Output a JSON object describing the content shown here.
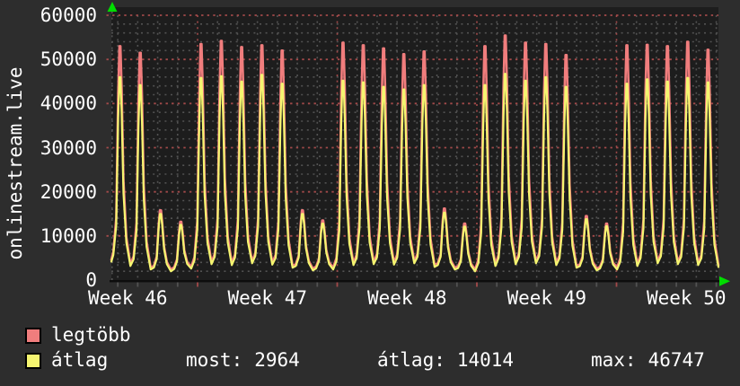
{
  "header": {
    "vertical_title": "onlinestream.live"
  },
  "colors": {
    "background": "#2d2d2d",
    "plot_background": "#1d1d1d",
    "minor_grid": "#525252",
    "major_grid_red": "#a34a4a",
    "axis": "#0d0d0d",
    "arrow_green": "#00dd00",
    "text": "#ffffff",
    "series_max": "#f07d7d",
    "series_avg": "#f5f570"
  },
  "legend": {
    "items": [
      {
        "label": "legtöbb",
        "color": "#f07d7d"
      },
      {
        "label": "átlag",
        "color": "#f5f570"
      }
    ]
  },
  "stats": {
    "most": {
      "label": "most:",
      "value": "2964"
    },
    "atlag": {
      "label": "átlag:",
      "value": "14014"
    },
    "max": {
      "label": "max:",
      "value": "46747"
    }
  },
  "chart_data": {
    "type": "line",
    "title": "onlinestream.live",
    "ylim": [
      0,
      60000
    ],
    "grid": {
      "minor_step_y": 2000,
      "major_step_y": 10000,
      "minor_x": "day",
      "major_x": "week"
    },
    "y_ticks": [
      {
        "value": 60000,
        "label": "60000"
      },
      {
        "value": 50000,
        "label": "50000"
      },
      {
        "value": 40000,
        "label": "40000"
      },
      {
        "value": 30000,
        "label": "30000"
      },
      {
        "value": 20000,
        "label": "20000"
      },
      {
        "value": 10000,
        "label": "10000"
      },
      {
        "value": 0,
        "label": "0"
      }
    ],
    "x_tick_labels": [
      "Week 46",
      "Week 47",
      "Week 48",
      "Week 49",
      "Week 50"
    ],
    "legend_position": "bottom-left",
    "series_names": {
      "max": "legtöbb",
      "avg": "átlag"
    },
    "days": [
      {
        "max": 53000,
        "avg": 46000
      },
      {
        "max": 51500,
        "avg": 44200
      },
      {
        "max": 15800,
        "avg": 15000
      },
      {
        "max": 13200,
        "avg": 12500
      },
      {
        "max": 53500,
        "avg": 45800
      },
      {
        "max": 54200,
        "avg": 46200
      },
      {
        "max": 52800,
        "avg": 45000
      },
      {
        "max": 53200,
        "avg": 46500
      },
      {
        "max": 52000,
        "avg": 44500
      },
      {
        "max": 15800,
        "avg": 15000
      },
      {
        "max": 13500,
        "avg": 12800
      },
      {
        "max": 53800,
        "avg": 45200
      },
      {
        "max": 53200,
        "avg": 44800
      },
      {
        "max": 52500,
        "avg": 43800
      },
      {
        "max": 51200,
        "avg": 43200
      },
      {
        "max": 51800,
        "avg": 44200
      },
      {
        "max": 16200,
        "avg": 15300
      },
      {
        "max": 12800,
        "avg": 12100
      },
      {
        "max": 53000,
        "avg": 44200
      },
      {
        "max": 55400,
        "avg": 46747
      },
      {
        "max": 53800,
        "avg": 45200
      },
      {
        "max": 53500,
        "avg": 46000
      },
      {
        "max": 51000,
        "avg": 43800
      },
      {
        "max": 14500,
        "avg": 13800
      },
      {
        "max": 12800,
        "avg": 12200
      },
      {
        "max": 53200,
        "avg": 44500
      },
      {
        "max": 53300,
        "avg": 45500
      },
      {
        "max": 53000,
        "avg": 45000
      },
      {
        "max": 54000,
        "avg": 45800
      },
      {
        "max": 52200,
        "avg": 44800
      }
    ],
    "troughs": [
      4200,
      3200,
      2400,
      2000,
      2600,
      3600,
      3400,
      3800,
      3500,
      2800,
      2200,
      2400,
      3400,
      3600,
      3500,
      3800,
      3000,
      2400,
      2000,
      3200,
      3600,
      3800,
      3400,
      2800,
      2200,
      2400,
      3200,
      3800,
      3600,
      3400,
      2964
    ],
    "daily_profile": [
      [
        0,
        0
      ],
      [
        0.16,
        0.04
      ],
      [
        0.3,
        0.2
      ],
      [
        0.4,
        0.78
      ],
      [
        0.46,
        1
      ],
      [
        0.51,
        1
      ],
      [
        0.57,
        0.8
      ],
      [
        0.66,
        0.38
      ],
      [
        0.8,
        0.12
      ]
    ]
  }
}
